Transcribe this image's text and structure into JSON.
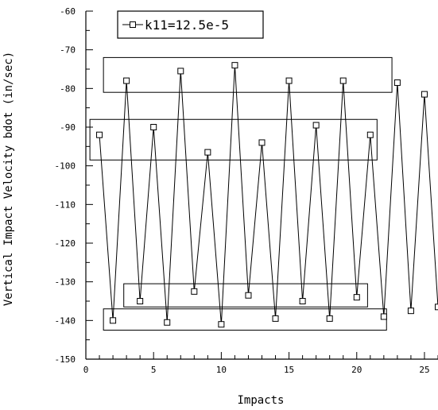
{
  "chart_data": {
    "type": "line",
    "xlabel": "Impacts",
    "ylabel": "Vertical Impact Velocity bdot (in/sec)",
    "xlim": [
      0,
      26
    ],
    "ylim": [
      -150,
      -60
    ],
    "x_ticks": [
      0,
      5,
      10,
      15,
      20,
      25
    ],
    "x_tick_labels": [
      "0",
      "5",
      "10",
      "15",
      "20",
      "25"
    ],
    "y_ticks": [
      -60,
      -70,
      -80,
      -90,
      -100,
      -110,
      -120,
      -130,
      -140,
      -150
    ],
    "y_tick_labels": [
      "-60",
      "-70",
      "-80",
      "-90",
      "-100",
      "-110",
      "-120",
      "-130",
      "-140",
      "-150"
    ],
    "grid": false,
    "legend_position": "top-left",
    "series": [
      {
        "name": "k11=12.5e-5",
        "marker": "open-square",
        "x": [
          1,
          2,
          3,
          4,
          5,
          6,
          7,
          8,
          9,
          10,
          11,
          12,
          13,
          14,
          15,
          16,
          17,
          18,
          19,
          20,
          21,
          22,
          23,
          24,
          25,
          26
        ],
        "y": [
          -92,
          -140,
          -78,
          -135,
          -90,
          -140.5,
          -75.5,
          -132.5,
          -96.5,
          -141,
          -74,
          -133.5,
          -94,
          -139.5,
          -78,
          -135,
          -89.5,
          -139.5,
          -78,
          -134,
          -92,
          -139,
          -78.5,
          -137.5,
          -81.5,
          -136.5
        ]
      }
    ],
    "annotations": [
      {
        "type": "rectangle",
        "x_range": [
          1.3,
          22.6
        ],
        "y_range": [
          -81,
          -72
        ]
      },
      {
        "type": "rectangle",
        "x_range": [
          0.3,
          21.5
        ],
        "y_range": [
          -98.5,
          -88
        ]
      },
      {
        "type": "rectangle",
        "x_range": [
          2.8,
          20.8
        ],
        "y_range": [
          -136.5,
          -130.5
        ]
      },
      {
        "type": "rectangle",
        "x_range": [
          1.3,
          22.2
        ],
        "y_range": [
          -142.5,
          -137
        ]
      }
    ]
  }
}
